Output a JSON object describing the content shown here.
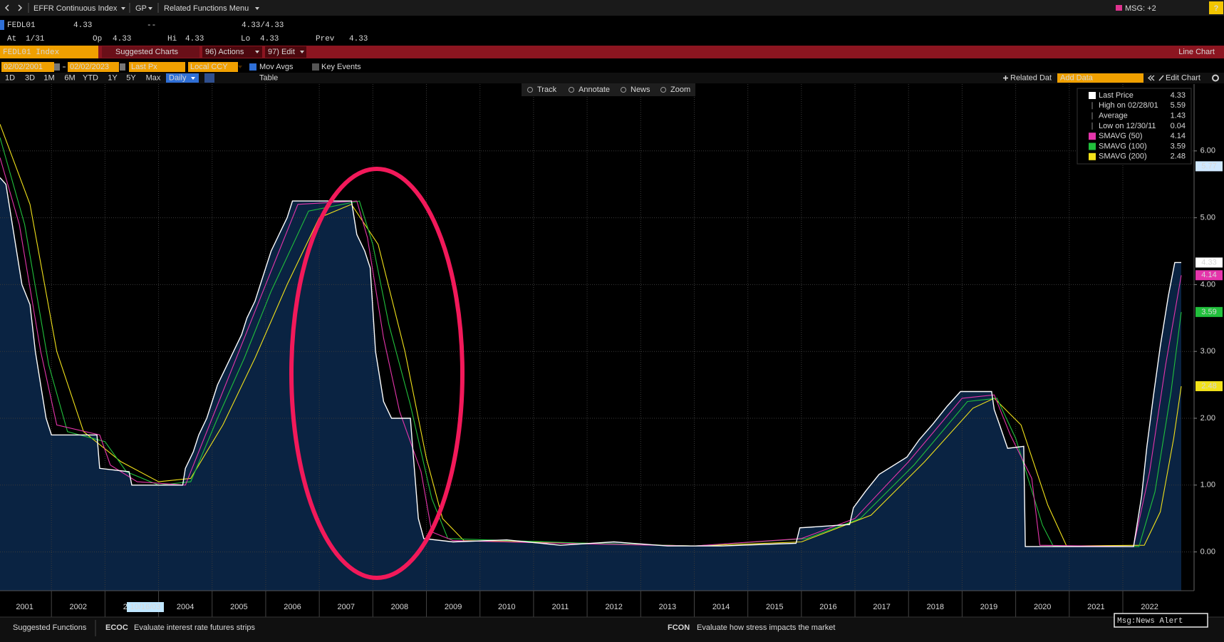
{
  "toolbar": {
    "items": [
      "EFFR Continuous Index",
      "GP",
      "Related Functions Menu"
    ],
    "msg": "MSG: +2",
    "help": "?"
  },
  "quote": {
    "ticker": "FEDL01",
    "last": 4.33,
    "change": "--",
    "bid_ask": "4.33/4.33",
    "at_label": "At",
    "at": "1/31",
    "fields": [
      {
        "label": "Op",
        "value": 4.33
      },
      {
        "label": "Hi",
        "value": 4.33
      },
      {
        "label": "Lo",
        "value": 4.33
      },
      {
        "label": "Prev",
        "value": 4.33
      }
    ]
  },
  "function_bar": {
    "security": "FEDL01 Index",
    "suggested": "Suggested Charts",
    "actions": "96) Actions",
    "edit": "97) Edit",
    "view": "Line Chart"
  },
  "controls": {
    "start_date": "02/02/2001",
    "end_date": "02/02/2023",
    "field": "Last Px",
    "currency": "Local CCY",
    "mov_avgs": "Mov Avgs",
    "key_events": "Key Events",
    "periods": [
      "1D",
      "3D",
      "1M",
      "6M",
      "YTD",
      "1Y",
      "5Y",
      "Max"
    ],
    "frequency": "Daily",
    "table": "Table",
    "related_data": "Related Dat",
    "add_data": "Add Data",
    "edit_chart": "Edit Chart"
  },
  "chart_tools": [
    "Track",
    "Annotate",
    "News",
    "Zoom"
  ],
  "chart_data": {
    "type": "line",
    "fill_color": "#0a2342",
    "grid": true,
    "xlim": [
      2001.04,
      2023.33
    ],
    "xticks": [
      {
        "value": 2001,
        "label": "2001"
      },
      {
        "value": 2002,
        "label": "2002"
      },
      {
        "value": 2003,
        "label": "2003"
      },
      {
        "value": 2004,
        "label": "2004"
      },
      {
        "value": 2005,
        "label": "2005"
      },
      {
        "value": 2006,
        "label": "2006"
      },
      {
        "value": 2007,
        "label": "2007"
      },
      {
        "value": 2008,
        "label": "2008"
      },
      {
        "value": 2009,
        "label": "2009"
      },
      {
        "value": 2010,
        "label": "2010"
      },
      {
        "value": 2011,
        "label": "2011"
      },
      {
        "value": 2012,
        "label": "2012"
      },
      {
        "value": 2013,
        "label": "2013"
      },
      {
        "value": 2014,
        "label": "2014"
      },
      {
        "value": 2015,
        "label": "2015"
      },
      {
        "value": 2016,
        "label": "2016"
      },
      {
        "value": 2017,
        "label": "2017"
      },
      {
        "value": 2018,
        "label": "2018"
      },
      {
        "value": 2019,
        "label": "2019"
      },
      {
        "value": 2020,
        "label": "2020"
      },
      {
        "value": 2021,
        "label": "2021"
      },
      {
        "value": 2022,
        "label": "2022"
      }
    ],
    "ylim": [
      -0.58,
      7.0
    ],
    "yticks": [
      {
        "value": 0,
        "label": "0.00"
      },
      {
        "value": 1,
        "label": "1.00"
      },
      {
        "value": 2,
        "label": "2.00"
      },
      {
        "value": 3,
        "label": "3.00"
      },
      {
        "value": 4,
        "label": "4.00"
      },
      {
        "value": 5,
        "label": "5.00"
      },
      {
        "value": 6,
        "label": "6.00"
      }
    ],
    "date_marker": "10/16/03",
    "y_marker": 5.77,
    "series": [
      {
        "name": "Last Price",
        "color": "#ffffff",
        "x": [
          2001.04,
          2001.15,
          2001.25,
          2001.35,
          2001.45,
          2001.6,
          2001.7,
          2001.8,
          2001.9,
          2002.0,
          2002.85,
          2002.9,
          2003.45,
          2003.5,
          2004.45,
          2004.5,
          2004.65,
          2004.75,
          2004.9,
          2005.0,
          2005.1,
          2005.25,
          2005.4,
          2005.55,
          2005.65,
          2005.8,
          2005.9,
          2006.1,
          2006.25,
          2006.4,
          2006.5,
          2007.6,
          2007.7,
          2007.85,
          2007.95,
          2008.05,
          2008.2,
          2008.35,
          2008.7,
          2008.75,
          2008.85,
          2008.95,
          2009.5,
          2010.5,
          2011.5,
          2012.5,
          2013.5,
          2014.5,
          2015.9,
          2015.97,
          2016.9,
          2016.97,
          2017.2,
          2017.45,
          2017.97,
          2018.2,
          2018.45,
          2018.72,
          2018.97,
          2019.55,
          2019.6,
          2019.7,
          2019.85,
          2020.15,
          2020.18,
          2021.5,
          2022.2,
          2022.25,
          2022.35,
          2022.45,
          2022.57,
          2022.7,
          2022.85,
          2022.97,
          2023.09
        ],
        "values": [
          5.6,
          5.5,
          5.0,
          4.5,
          4.0,
          3.7,
          3.0,
          2.5,
          2.0,
          1.75,
          1.75,
          1.25,
          1.2,
          1.0,
          1.0,
          1.25,
          1.5,
          1.75,
          2.0,
          2.25,
          2.5,
          2.75,
          3.0,
          3.25,
          3.5,
          3.75,
          4.0,
          4.5,
          4.75,
          5.0,
          5.25,
          5.25,
          4.75,
          4.5,
          4.25,
          3.0,
          2.25,
          2.0,
          2.0,
          1.5,
          0.5,
          0.2,
          0.15,
          0.18,
          0.1,
          0.15,
          0.09,
          0.09,
          0.13,
          0.36,
          0.41,
          0.66,
          0.91,
          1.16,
          1.42,
          1.68,
          1.91,
          2.18,
          2.4,
          2.4,
          2.13,
          1.9,
          1.55,
          1.58,
          0.08,
          0.08,
          0.08,
          0.33,
          0.83,
          1.58,
          2.33,
          3.08,
          3.83,
          4.33,
          4.33
        ]
      },
      {
        "name": "SMAVG (50)",
        "color": "#e535ab",
        "x": [
          2001.04,
          2001.4,
          2001.8,
          2002.1,
          2002.9,
          2003.1,
          2003.6,
          2004.5,
          2005.0,
          2005.5,
          2006.0,
          2006.6,
          2007.7,
          2007.9,
          2008.2,
          2008.5,
          2008.9,
          2009.1,
          2009.5,
          2012.0,
          2014.0,
          2016.0,
          2017.0,
          2018.0,
          2019.0,
          2019.6,
          2019.9,
          2020.3,
          2020.45,
          2022.2,
          2022.5,
          2022.8,
          2023.09
        ],
        "values": [
          5.9,
          4.9,
          3.0,
          1.9,
          1.75,
          1.3,
          1.05,
          1.0,
          2.0,
          3.0,
          4.0,
          5.2,
          5.25,
          4.7,
          3.2,
          2.1,
          1.2,
          0.3,
          0.17,
          0.12,
          0.09,
          0.2,
          0.5,
          1.35,
          2.3,
          2.35,
          1.75,
          1.1,
          0.1,
          0.08,
          1.2,
          2.8,
          4.14
        ]
      },
      {
        "name": "SMAVG (100)",
        "color": "#21c03c",
        "x": [
          2001.04,
          2001.5,
          2001.95,
          2002.3,
          2003.0,
          2003.4,
          2004.0,
          2004.6,
          2005.1,
          2005.6,
          2006.1,
          2006.8,
          2007.75,
          2008.0,
          2008.3,
          2008.7,
          2009.1,
          2009.4,
          2012.0,
          2014.0,
          2016.1,
          2017.1,
          2018.1,
          2019.1,
          2019.65,
          2020.0,
          2020.5,
          2020.7,
          2022.3,
          2022.6,
          2022.9,
          2023.09
        ],
        "values": [
          6.2,
          4.9,
          2.8,
          1.8,
          1.65,
          1.2,
          1.0,
          1.05,
          2.0,
          2.9,
          3.9,
          5.1,
          5.25,
          4.6,
          3.4,
          2.2,
          0.8,
          0.2,
          0.13,
          0.09,
          0.2,
          0.5,
          1.3,
          2.25,
          2.3,
          1.7,
          0.4,
          0.09,
          0.08,
          0.9,
          2.4,
          3.59
        ]
      },
      {
        "name": "SMAVG (200)",
        "color": "#f2e21a",
        "x": [
          2001.04,
          2001.6,
          2002.1,
          2002.6,
          2003.3,
          2004.0,
          2004.6,
          2005.2,
          2005.8,
          2006.4,
          2007.0,
          2007.6,
          2008.1,
          2008.6,
          2009.0,
          2009.3,
          2009.7,
          2012.0,
          2014.0,
          2016.0,
          2017.3,
          2018.3,
          2019.2,
          2019.6,
          2020.1,
          2020.6,
          2020.95,
          2022.4,
          2022.7,
          2022.95,
          2023.09
        ],
        "values": [
          6.4,
          5.2,
          3.0,
          1.8,
          1.35,
          1.05,
          1.1,
          1.9,
          2.9,
          4.0,
          5.0,
          5.2,
          4.6,
          3.0,
          1.4,
          0.5,
          0.17,
          0.13,
          0.09,
          0.15,
          0.55,
          1.35,
          2.15,
          2.3,
          1.9,
          0.7,
          0.09,
          0.1,
          0.6,
          1.7,
          2.48
        ]
      }
    ],
    "stats": [
      {
        "label": "High on 02/28/01",
        "value": 5.59
      },
      {
        "label": "Average",
        "value": 1.43
      },
      {
        "label": "Low on 12/30/11",
        "value": 0.04
      }
    ]
  },
  "footer": {
    "label": "Suggested Functions",
    "items": [
      {
        "code": "ECOC",
        "text": "Evaluate interest rate futures strips"
      },
      {
        "code": "FCON",
        "text": "Evaluate how stress impacts the market"
      }
    ],
    "alert": "Msg:News Alert"
  }
}
